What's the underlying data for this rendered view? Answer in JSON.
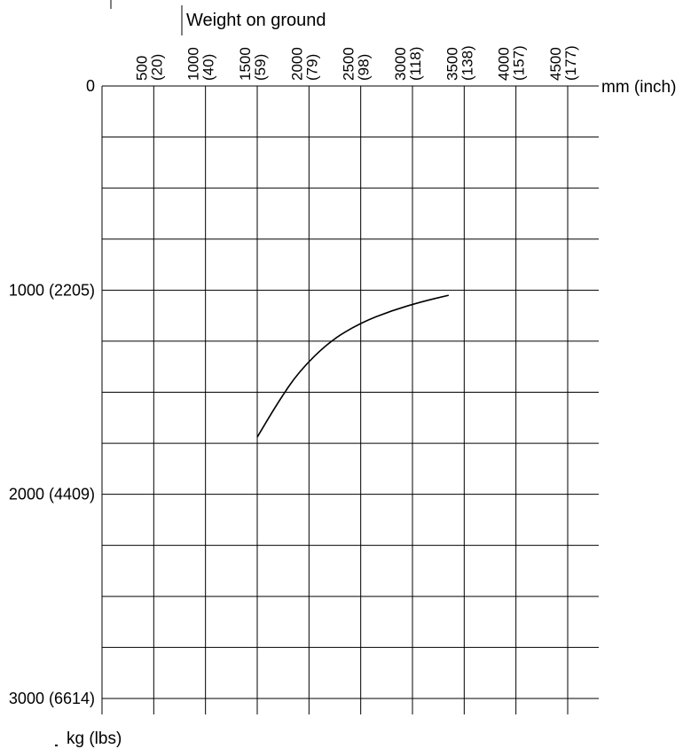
{
  "chart_data": {
    "type": "line",
    "title": "Weight on ground",
    "xlabel": "mm (inch)",
    "ylabel": "kg (lbs)",
    "x_axis_position": "top",
    "y_axis_inverted": true,
    "xlim": [
      0,
      4500
    ],
    "ylim": [
      0,
      3000
    ],
    "grid": true,
    "x_ticks": [
      {
        "value": 500,
        "label": "500",
        "sub": "(20)"
      },
      {
        "value": 1000,
        "label": "1000",
        "sub": "(40)"
      },
      {
        "value": 1500,
        "label": "1500",
        "sub": "(59)"
      },
      {
        "value": 2000,
        "label": "2000",
        "sub": "(79)"
      },
      {
        "value": 2500,
        "label": "2500",
        "sub": "(98)"
      },
      {
        "value": 3000,
        "label": "3000",
        "sub": "(118)"
      },
      {
        "value": 3500,
        "label": "3500",
        "sub": "(138)"
      },
      {
        "value": 4000,
        "label": "4000",
        "sub": "(157)"
      },
      {
        "value": 4500,
        "label": "4500",
        "sub": "(177)"
      }
    ],
    "y_ticks": [
      {
        "value": 0,
        "label": "0"
      },
      {
        "value": 1000,
        "label": "1000 (2205)"
      },
      {
        "value": 2000,
        "label": "2000 (4409)"
      },
      {
        "value": 3000,
        "label": "3000 (6614)"
      }
    ],
    "series": [
      {
        "color": "#000000",
        "points": [
          {
            "x": 1500,
            "y": 1720
          },
          {
            "x": 1700,
            "y": 1550
          },
          {
            "x": 1900,
            "y": 1400
          },
          {
            "x": 2200,
            "y": 1250
          },
          {
            "x": 2500,
            "y": 1160
          },
          {
            "x": 2800,
            "y": 1100
          },
          {
            "x": 3100,
            "y": 1055
          },
          {
            "x": 3350,
            "y": 1025
          }
        ]
      }
    ]
  }
}
